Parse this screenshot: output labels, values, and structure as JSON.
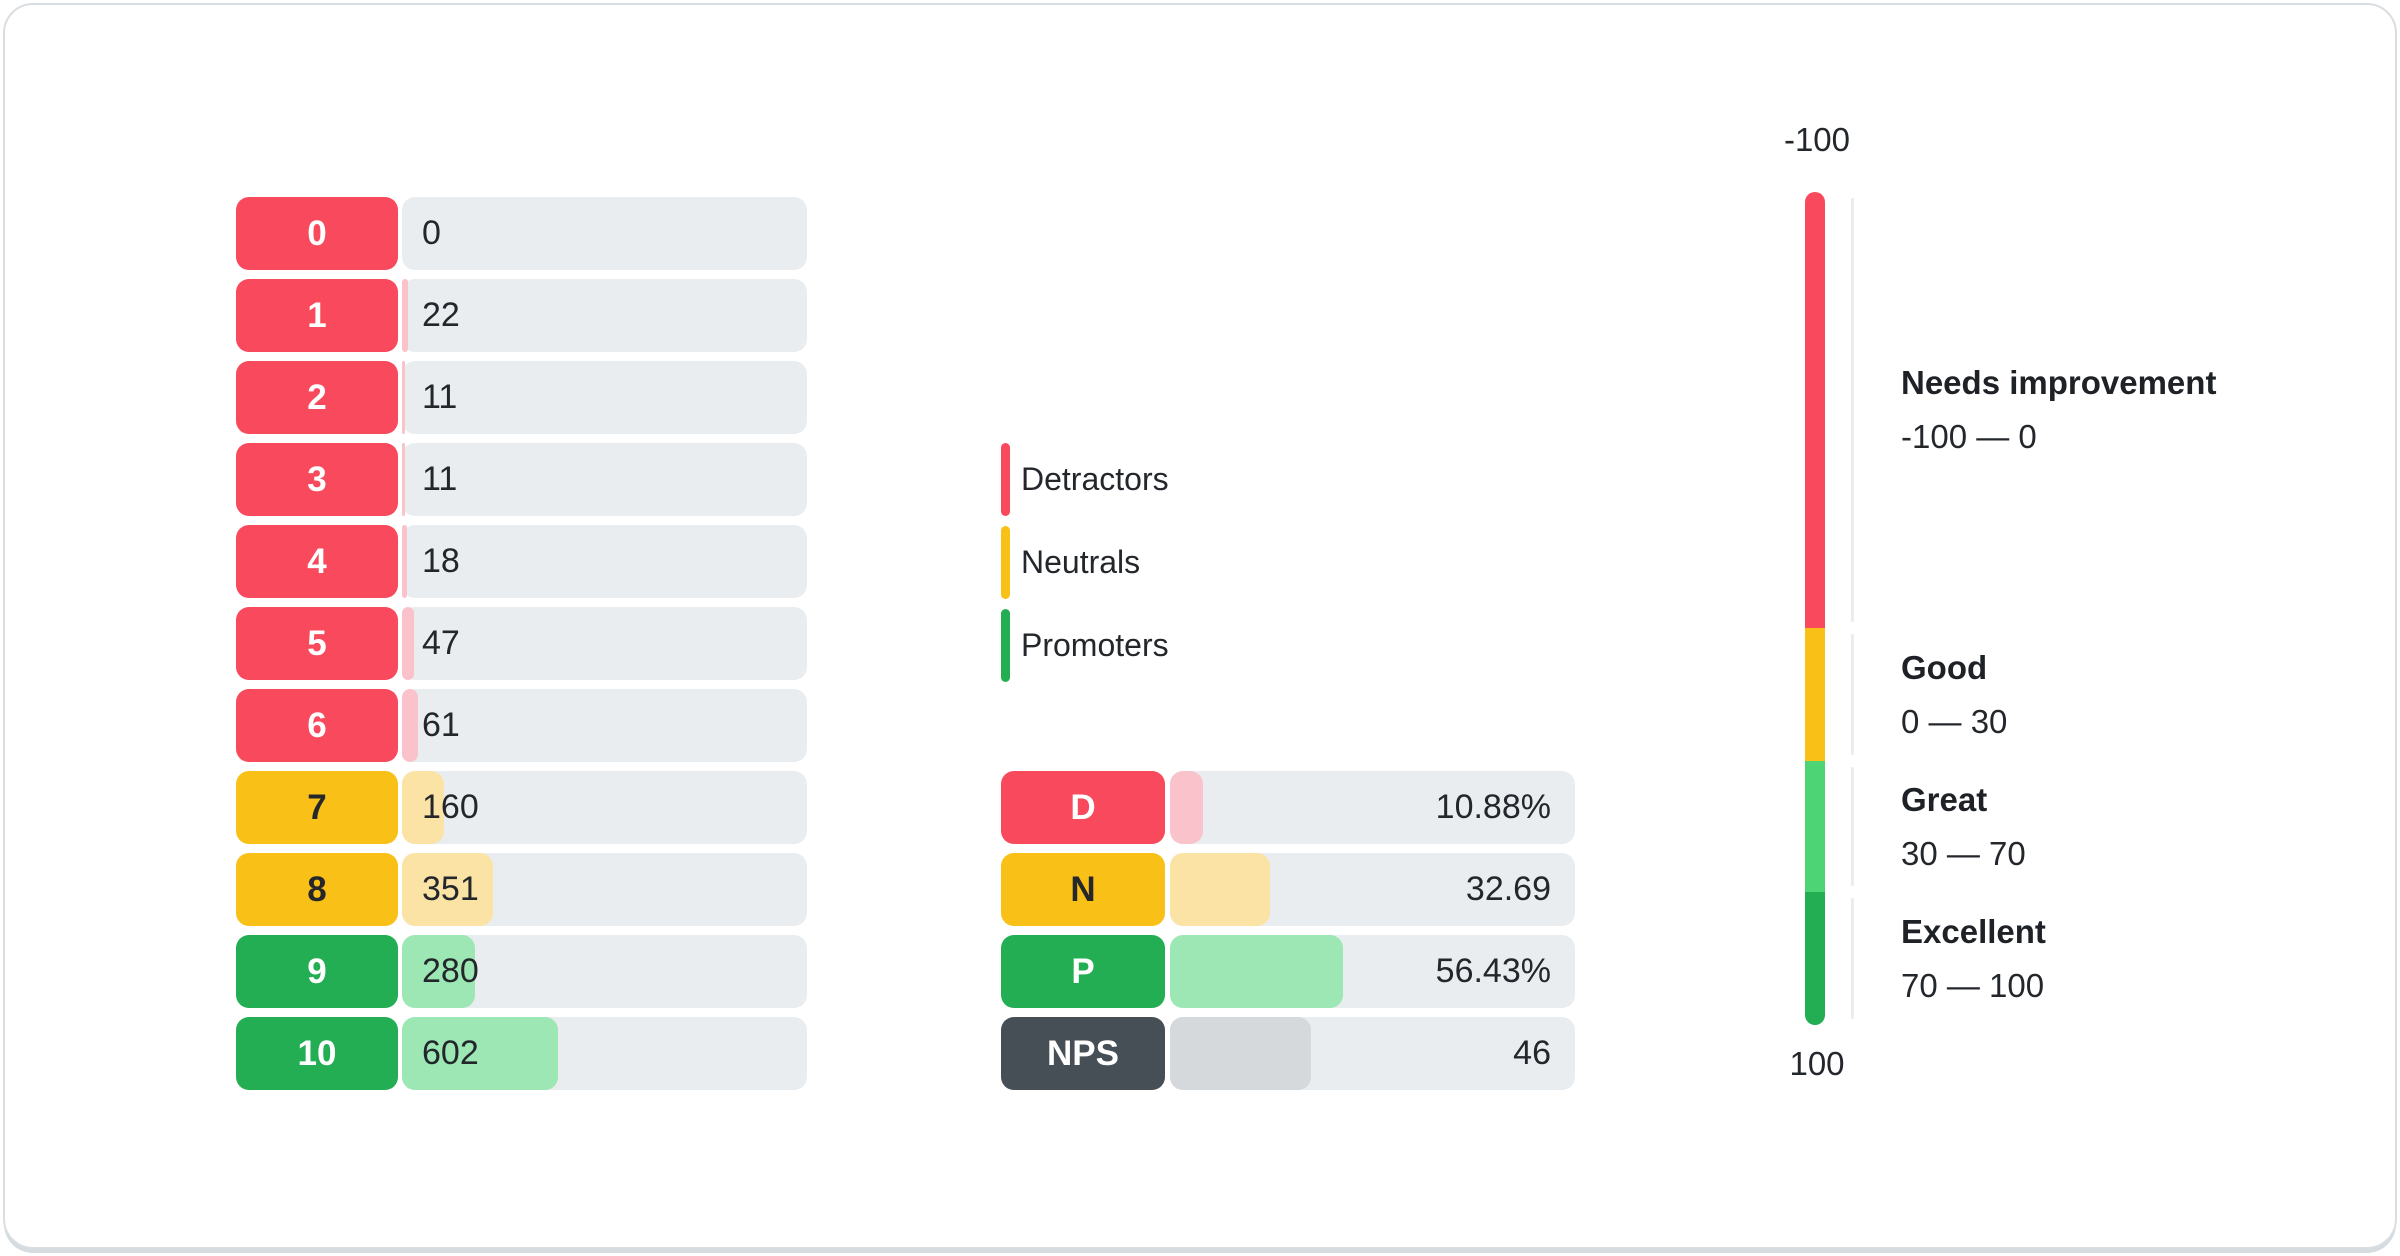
{
  "colors": {
    "detractor": "#F9495C",
    "detractor_light": "#FAC3CB",
    "neutral": "#F9C118",
    "neutral_light": "#FBE3A6",
    "promoter": "#24AE53",
    "promoter_light": "#9CE7B4",
    "nps": "#464E56",
    "nps_light": "#D5D9DC",
    "track": "#E9EDF0",
    "text_dark": "#23272C",
    "gauge_great": "#4DD475",
    "label_text_light": "#FFFFFF",
    "label_text_dark": "#26272B"
  },
  "distribution": {
    "rows": [
      {
        "score": "0",
        "count": "0",
        "category": "detractor"
      },
      {
        "score": "1",
        "count": "22",
        "category": "detractor"
      },
      {
        "score": "2",
        "count": "11",
        "category": "detractor"
      },
      {
        "score": "3",
        "count": "11",
        "category": "detractor"
      },
      {
        "score": "4",
        "count": "18",
        "category": "detractor"
      },
      {
        "score": "5",
        "count": "47",
        "category": "detractor"
      },
      {
        "score": "6",
        "count": "61",
        "category": "detractor"
      },
      {
        "score": "7",
        "count": "160",
        "category": "neutral"
      },
      {
        "score": "8",
        "count": "351",
        "category": "neutral"
      },
      {
        "score": "9",
        "count": "280",
        "category": "promoter"
      },
      {
        "score": "10",
        "count": "602",
        "category": "promoter"
      }
    ]
  },
  "legend": {
    "items": [
      {
        "label": "Detractors",
        "category": "detractor"
      },
      {
        "label": "Neutrals",
        "category": "neutral"
      },
      {
        "label": "Promoters",
        "category": "promoter"
      }
    ]
  },
  "summary": {
    "rows": [
      {
        "label": "D",
        "value": "10.88%",
        "numeric": 10.88,
        "category": "detractor"
      },
      {
        "label": "N",
        "value": "32.69",
        "numeric": 32.69,
        "category": "neutral"
      },
      {
        "label": "P",
        "value": "56.43%",
        "numeric": 56.43,
        "category": "promoter"
      },
      {
        "label": "NPS",
        "value": "46",
        "numeric": 46,
        "category": "nps"
      }
    ]
  },
  "gauge": {
    "top_label": "-100",
    "bottom_label": "100",
    "segments": [
      {
        "title": "Needs improvement",
        "range": "-100 — 0",
        "color": "#F9495C",
        "height_pct": 52.34
      },
      {
        "title": "Good",
        "range": "0 — 30",
        "color": "#F9C118",
        "height_pct": 15.97
      },
      {
        "title": "Great",
        "range": "30 — 70",
        "color": "#4DD475",
        "height_pct": 15.73
      },
      {
        "title": "Excellent",
        "range": "70 — 100",
        "color": "#24AE53",
        "height_pct": 15.96
      }
    ]
  },
  "chart_data": [
    {
      "type": "bar",
      "orientation": "horizontal",
      "title": "",
      "categories": [
        "0",
        "1",
        "2",
        "3",
        "4",
        "5",
        "6",
        "7",
        "8",
        "9",
        "10"
      ],
      "values": [
        0,
        22,
        11,
        11,
        18,
        47,
        61,
        160,
        351,
        280,
        602
      ],
      "groups": [
        "detractor",
        "detractor",
        "detractor",
        "detractor",
        "detractor",
        "detractor",
        "detractor",
        "neutral",
        "neutral",
        "promoter",
        "promoter"
      ],
      "legend": [
        "Detractors",
        "Neutrals",
        "Promoters"
      ],
      "legend_position": "right",
      "grid": false
    },
    {
      "type": "bar",
      "orientation": "horizontal",
      "title": "",
      "categories": [
        "D",
        "N",
        "P",
        "NPS"
      ],
      "values": [
        10.88,
        32.69,
        56.43,
        46
      ],
      "value_labels": [
        "10.88%",
        "32.69",
        "56.43%",
        "46"
      ],
      "grid": false
    },
    {
      "type": "gauge",
      "title": "",
      "min": -100,
      "max": 100,
      "value": 46,
      "bands": [
        {
          "label": "Needs improvement",
          "from": -100,
          "to": 0
        },
        {
          "label": "Good",
          "from": 0,
          "to": 30
        },
        {
          "label": "Great",
          "from": 30,
          "to": 70
        },
        {
          "label": "Excellent",
          "from": 70,
          "to": 100
        }
      ]
    }
  ]
}
